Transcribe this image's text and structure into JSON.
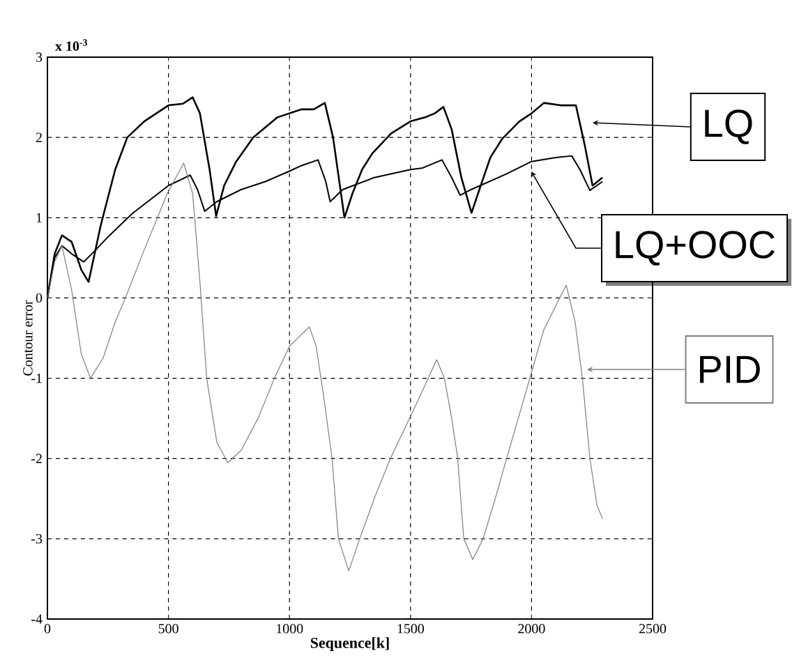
{
  "chart_data": {
    "type": "line",
    "xlabel": "Sequence[k]",
    "ylabel": "Contour error",
    "xlim": [
      0,
      2500
    ],
    "ylim": [
      -4,
      3
    ],
    "xticks": [
      0,
      500,
      1000,
      1500,
      2000,
      2500
    ],
    "yticks": [
      -4,
      -3,
      -2,
      -1,
      0,
      1,
      2,
      3
    ],
    "grid": true,
    "line_style": "solid",
    "legend": "right",
    "annotations": [
      "x 10$^{-3}$"
    ],
    "series": [
      {
        "name": "LQ",
        "color": "#000000",
        "x": [
          0,
          30,
          60,
          100,
          140,
          170,
          220,
          280,
          330,
          400,
          500,
          560,
          600,
          630,
          670,
          697,
          730,
          780,
          850,
          950,
          1050,
          1100,
          1146,
          1180,
          1227,
          1260,
          1300,
          1342,
          1420,
          1500,
          1560,
          1600,
          1636,
          1670,
          1710,
          1752,
          1790,
          1830,
          1878,
          1950,
          2000,
          2051,
          2120,
          2183,
          2220,
          2252,
          2293
        ],
        "values": [
          0,
          0.55,
          0.78,
          0.7,
          0.35,
          0.2,
          0.9,
          1.6,
          2.0,
          2.2,
          2.4,
          2.42,
          2.5,
          2.3,
          1.6,
          1.02,
          1.4,
          1.7,
          2.0,
          2.25,
          2.35,
          2.35,
          2.43,
          2.0,
          1.0,
          1.3,
          1.6,
          1.8,
          2.05,
          2.2,
          2.25,
          2.3,
          2.38,
          2.1,
          1.5,
          1.06,
          1.4,
          1.75,
          1.98,
          2.2,
          2.3,
          2.43,
          2.4,
          2.4,
          1.9,
          1.4,
          1.5
        ]
      },
      {
        "name": "LQ+OOC",
        "color": "#000000",
        "x": [
          0,
          30,
          60,
          100,
          150,
          200,
          250,
          350,
          500,
          590,
          620,
          650,
          700,
          800,
          900,
          1000,
          1050,
          1118,
          1150,
          1168,
          1220,
          1350,
          1500,
          1550,
          1630,
          1670,
          1705,
          1750,
          1900,
          2000,
          2100,
          2166,
          2200,
          2241,
          2293
        ],
        "values": [
          0,
          0.5,
          0.65,
          0.55,
          0.45,
          0.6,
          0.76,
          1.05,
          1.4,
          1.53,
          1.35,
          1.08,
          1.2,
          1.35,
          1.45,
          1.58,
          1.65,
          1.72,
          1.45,
          1.2,
          1.35,
          1.5,
          1.6,
          1.62,
          1.72,
          1.5,
          1.28,
          1.35,
          1.55,
          1.7,
          1.75,
          1.77,
          1.6,
          1.34,
          1.45
        ]
      },
      {
        "name": "PID",
        "color": "#7f7f7f",
        "x": [
          0,
          30,
          60,
          100,
          140,
          178,
          230,
          280,
          322,
          400,
          495,
          563,
          600,
          630,
          658,
          700,
          745,
          800,
          870,
          938,
          1000,
          1082,
          1110,
          1140,
          1176,
          1202,
          1245,
          1290,
          1350,
          1417,
          1532,
          1608,
          1640,
          1670,
          1695,
          1720,
          1757,
          1800,
          1850,
          1897,
          1993,
          2050,
          2143,
          2180,
          2210,
          2241,
          2270,
          2293
        ],
        "values": [
          0,
          0.45,
          0.65,
          0.1,
          -0.7,
          -1.0,
          -0.75,
          -0.3,
          0,
          0.6,
          1.3,
          1.68,
          1.3,
          0.2,
          -1.0,
          -1.8,
          -2.05,
          -1.9,
          -1.5,
          -1.0,
          -0.6,
          -0.36,
          -0.6,
          -1.2,
          -2.0,
          -3.0,
          -3.4,
          -3.0,
          -2.5,
          -2.0,
          -1.27,
          -0.77,
          -1.0,
          -1.5,
          -2.0,
          -3.0,
          -3.26,
          -3.0,
          -2.5,
          -2.0,
          -1.0,
          -0.4,
          0.16,
          -0.3,
          -1.0,
          -2.0,
          -2.58,
          -2.75
        ]
      }
    ]
  }
}
